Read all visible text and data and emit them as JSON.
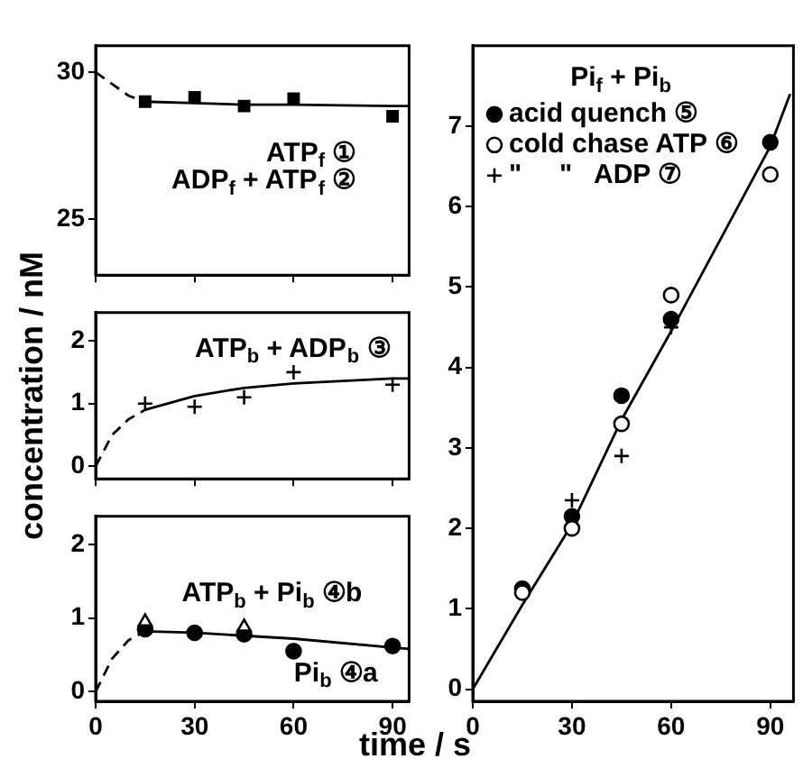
{
  "chart_data": [
    {
      "type": "scatter",
      "xlim": [
        0,
        95
      ],
      "xticks": [
        0,
        30,
        60,
        90
      ],
      "ylim": [
        23.1,
        30.9
      ],
      "yticks": [
        25,
        30
      ],
      "tick_labels": "y",
      "annotations": [
        "ATP$_{f}$ ①",
        "ADP$_{f}$ + ATP$_{f}$ ②"
      ],
      "series": [
        {
          "type": "scatter",
          "marker": "square",
          "color": "#000000",
          "x": [
            15,
            30,
            45,
            60,
            90
          ],
          "values": [
            29.0,
            29.15,
            28.85,
            29.1,
            28.5
          ]
        },
        {
          "type": "line",
          "marker": "none",
          "line_style": "dashed",
          "color": "#000000",
          "x": [
            0,
            5,
            10,
            15
          ],
          "values": [
            30,
            29.6,
            29.2,
            29.0
          ]
        },
        {
          "type": "line",
          "marker": "none",
          "line_style": "solid",
          "color": "#000000",
          "x": [
            15,
            30,
            45,
            60,
            90,
            95
          ],
          "values": [
            29.0,
            28.95,
            28.9,
            28.9,
            28.85,
            28.85
          ]
        }
      ]
    },
    {
      "type": "scatter",
      "xlim": [
        0,
        95
      ],
      "xticks": [
        0,
        30,
        60,
        90
      ],
      "ylim": [
        -0.2,
        2.45
      ],
      "yticks": [
        0,
        1,
        2
      ],
      "tick_labels": "y",
      "ylabel": "concentration / nM",
      "annotations": [
        "ATP$_{b}$ + ADP$_{b}$ ③"
      ],
      "series": [
        {
          "type": "scatter",
          "marker": "cross",
          "color": "#000000",
          "x": [
            15,
            30,
            45,
            60,
            90
          ],
          "values": [
            1.0,
            0.95,
            1.1,
            1.5,
            1.3
          ]
        },
        {
          "type": "line",
          "marker": "none",
          "line_style": "dashed",
          "color": "#000000",
          "x": [
            0,
            5,
            10,
            15
          ],
          "values": [
            0,
            0.5,
            0.75,
            0.9
          ]
        },
        {
          "type": "line",
          "marker": "none",
          "line_style": "solid",
          "color": "#000000",
          "x": [
            15,
            30,
            45,
            60,
            90,
            95
          ],
          "values": [
            0.9,
            1.12,
            1.25,
            1.32,
            1.4,
            1.4
          ]
        }
      ]
    },
    {
      "type": "scatter",
      "xlim": [
        0,
        95
      ],
      "xticks": [
        0,
        30,
        60,
        90
      ],
      "ylim": [
        -0.13,
        2.38
      ],
      "yticks": [
        0,
        1,
        2
      ],
      "xlabel": "time / s",
      "annotations": [
        "ATP$_{b}$ + Pi$_{b}$ ④b",
        "Pi$_{b}$ ④a"
      ],
      "series": [
        {
          "type": "scatter",
          "marker": "circle",
          "color": "#000000",
          "x": [
            15,
            30,
            45,
            60,
            90
          ],
          "values": [
            0.85,
            0.8,
            0.78,
            0.55,
            0.62
          ]
        },
        {
          "type": "scatter",
          "marker": "triangle",
          "color": "#ffffff",
          "x": [
            15,
            45
          ],
          "values": [
            0.95,
            0.88
          ]
        },
        {
          "type": "line",
          "marker": "none",
          "line_style": "dashed",
          "color": "#000000",
          "x": [
            0,
            5,
            10,
            15
          ],
          "values": [
            0,
            0.45,
            0.7,
            0.82
          ]
        },
        {
          "type": "line",
          "marker": "none",
          "line_style": "solid",
          "color": "#000000",
          "x": [
            15,
            30,
            45,
            60,
            90,
            95
          ],
          "values": [
            0.82,
            0.8,
            0.76,
            0.72,
            0.6,
            0.58
          ]
        }
      ]
    },
    {
      "type": "scatter",
      "xlim": [
        0,
        97
      ],
      "xticks": [
        0,
        30,
        60,
        90
      ],
      "ylim": [
        -0.15,
        8.0
      ],
      "yticks": [
        0,
        1,
        2,
        3,
        4,
        5,
        6,
        7
      ],
      "legend": "top left",
      "legend_title": "Pi$_{f}$ + Pi$_{b}$",
      "series": [
        {
          "type": "scatter",
          "name": "acid quench ⑤",
          "marker": "circle",
          "color": "#000000",
          "x": [
            15,
            30,
            45,
            60,
            90
          ],
          "values": [
            1.25,
            2.15,
            3.65,
            4.6,
            6.8
          ]
        },
        {
          "type": "scatter",
          "name": "cold chase ATP ⑥",
          "marker": "circle",
          "color": "#ffffff",
          "x": [
            15,
            30,
            45,
            60,
            90
          ],
          "values": [
            1.2,
            2.0,
            3.3,
            4.9,
            6.4
          ]
        },
        {
          "type": "scatter",
          "name": "\"     \"   ADP ⑦",
          "marker": "cross",
          "color": "#000000",
          "x": [
            30,
            45,
            60
          ],
          "values": [
            2.35,
            2.9,
            4.5
          ]
        },
        {
          "type": "line",
          "marker": "none",
          "line_style": "solid",
          "color": "#000000",
          "x": [
            0,
            15,
            30,
            45,
            60,
            90,
            96
          ],
          "values": [
            0,
            1.05,
            2.05,
            3.35,
            4.45,
            6.75,
            7.4
          ]
        }
      ]
    }
  ]
}
